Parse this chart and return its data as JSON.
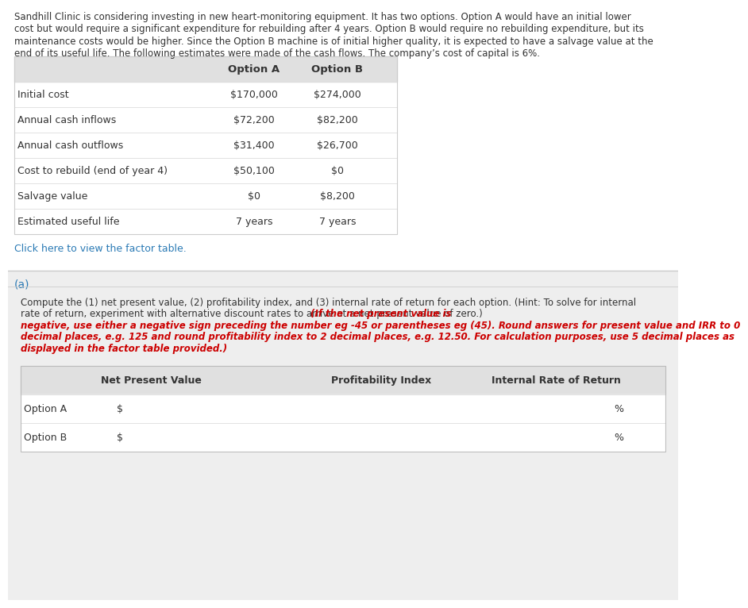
{
  "para_lines": [
    "Sandhill Clinic is considering investing in new heart-monitoring equipment. It has two options. Option A would have an initial lower",
    "cost but would require a significant expenditure for rebuilding after 4 years. Option B would require no rebuilding expenditure, but its",
    "maintenance costs would be higher. Since the Option B machine is of initial higher quality, it is expected to have a salvage value at the",
    "end of its useful life. The following estimates were made of the cash flows. The company’s cost of capital is 6%."
  ],
  "table_rows": [
    [
      "",
      "Option A",
      "Option B"
    ],
    [
      "Initial cost",
      "$170,000",
      "$274,000"
    ],
    [
      "Annual cash inflows",
      "$72,200",
      "$82,200"
    ],
    [
      "Annual cash outflows",
      "$31,400",
      "$26,700"
    ],
    [
      "Cost to rebuild (end of year 4)",
      "$50,100",
      "$0"
    ],
    [
      "Salvage value",
      "$0",
      "$8,200"
    ],
    [
      "Estimated useful life",
      "7 years",
      "7 years"
    ]
  ],
  "click_text": "Click here to view the factor table.",
  "section_a_label": "(a)",
  "inst_line1": "Compute the (1) net present value, (2) profitability index, and (3) internal rate of return for each option. (Hint: To solve for internal",
  "inst_line2": "rate of return, experiment with alternative discount rates to arrive at a net present value of zero.) ",
  "inst_red_end": "(If the net present value is",
  "inst_red_lines": [
    "negative, use either a negative sign preceding the number eg -45 or parentheses eg (45). Round answers for present value and IRR to 0",
    "decimal places, e.g. 125 and round profitability index to 2 decimal places, e.g. 12.50. For calculation purposes, use 5 decimal places as",
    "displayed in the factor table provided.)"
  ],
  "answer_headers": [
    "Net Present Value",
    "Profitability Index",
    "Internal Rate of Return"
  ],
  "answer_rows": [
    "Option A",
    "Option B"
  ],
  "bg_white": "#ffffff",
  "bg_gray": "#eeeeee",
  "bg_table_header": "#e0e0e0",
  "text_dark": "#333333",
  "text_red": "#cc0000",
  "text_link": "#2a7ab5",
  "border_color": "#bbbbbb",
  "divider_color": "#cccccc",
  "section_a_color": "#2a7ab5"
}
